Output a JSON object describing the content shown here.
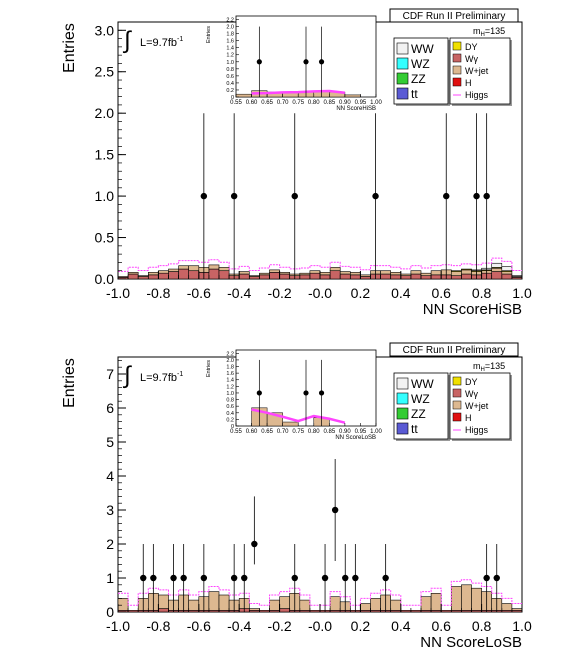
{
  "charts": [
    {
      "key": "hi",
      "header": "CDF Run II Preliminary",
      "mass_label": "m",
      "mass_sub": "H",
      "mass_value": "=135",
      "ylabel": "Entries",
      "xlabel": "NN ScoreHiSB",
      "lumi": "L=9.7fb",
      "lumi_sup": "-1",
      "legend_left": [
        "WW",
        "WZ",
        "ZZ",
        "tt"
      ],
      "legend_right": [
        "DY",
        "Wγ",
        "W+jet",
        "H",
        "Higgs"
      ],
      "inset": {
        "ylabel": "Entries",
        "xlabel": "NN ScoreHiSB"
      }
    },
    {
      "key": "lo",
      "header": "CDF Run II Preliminary",
      "mass_label": "m",
      "mass_sub": "H",
      "mass_value": "=135",
      "ylabel": "Entries",
      "xlabel": "NN ScoreLoSB",
      "lumi": "L=9.7fb",
      "lumi_sup": "-1",
      "legend_left": [
        "WW",
        "WZ",
        "ZZ",
        "tt"
      ],
      "legend_right": [
        "DY",
        "Wγ",
        "W+jet",
        "H",
        "Higgs"
      ],
      "inset": {
        "ylabel": "Entries",
        "xlabel": "NN ScoreLoSB"
      }
    }
  ],
  "colors": {
    "WW": "#f2f2f2",
    "WZ": "#33ffff",
    "ZZ": "#33cc33",
    "tt": "#5a5ad4",
    "DY": "#f0e000",
    "Wg": "#c86464",
    "Wjet": "#ddb890",
    "H": "#e01010",
    "Higgs": "#ff44ff"
  },
  "chart_data": [
    {
      "type": "bar",
      "title": "CDF Run II Preliminary",
      "xlabel": "NN ScoreHiSB",
      "ylabel": "Entries",
      "xlim": [
        -1.0,
        1.0
      ],
      "ylim": [
        0,
        3.1
      ],
      "xticks": [
        -1.0,
        -0.8,
        -0.6,
        -0.4,
        -0.2,
        -0.0,
        0.2,
        0.4,
        0.6,
        0.8,
        1.0
      ],
      "xtick_labels": [
        "-1.0",
        "-0.8",
        "-0.6",
        "-0.4",
        "-0.2",
        "-0.0",
        "0.2",
        "0.4",
        "0.6",
        "0.8",
        "1.0"
      ],
      "yticks": [
        0,
        0.5,
        1.0,
        1.5,
        2.0,
        2.5,
        3.0
      ],
      "ytick_labels": [
        "0.0",
        "0.5",
        "1.0",
        "1.5",
        "2.0",
        "2.5",
        "3.0"
      ],
      "bin_edges_range": [
        -1.0,
        1.0
      ],
      "n_bins": 40,
      "series": [
        {
          "name": "Wγ",
          "color_key": "Wg",
          "values": [
            0.02,
            0.06,
            0.03,
            0.05,
            0.07,
            0.09,
            0.12,
            0.1,
            0.08,
            0.12,
            0.1,
            0.04,
            0.06,
            0.03,
            0.05,
            0.08,
            0.06,
            0.04,
            0.05,
            0.07,
            0.05,
            0.1,
            0.06,
            0.05,
            0.03,
            0.06,
            0.06,
            0.05,
            0.04,
            0.06,
            0.04,
            0.05,
            0.05,
            0.04,
            0.06,
            0.05,
            0.07,
            0.09,
            0.06,
            0.02
          ]
        },
        {
          "name": "W+jet",
          "color_key": "Wjet",
          "values": [
            0.01,
            0.02,
            0.01,
            0.03,
            0.03,
            0.03,
            0.04,
            0.06,
            0.06,
            0.05,
            0.04,
            0.02,
            0.03,
            0.01,
            0.02,
            0.03,
            0.02,
            0.02,
            0.02,
            0.03,
            0.03,
            0.04,
            0.03,
            0.03,
            0.02,
            0.04,
            0.04,
            0.03,
            0.02,
            0.04,
            0.03,
            0.05,
            0.06,
            0.05,
            0.05,
            0.04,
            0.03,
            0.04,
            0.03,
            0.01
          ]
        },
        {
          "name": "DY",
          "color_key": "DY",
          "values": [
            0,
            0,
            0,
            0,
            0,
            0,
            0,
            0,
            0,
            0,
            0,
            0,
            0,
            0,
            0,
            0,
            0,
            0,
            0,
            0,
            0,
            0,
            0,
            0,
            0,
            0,
            0,
            0,
            0,
            0,
            0,
            0,
            0,
            0.01,
            0.01,
            0.01,
            0.01,
            0.01,
            0.01,
            0
          ]
        },
        {
          "name": "WW",
          "color_key": "WW",
          "values": [
            0,
            0,
            0,
            0,
            0,
            0,
            0,
            0,
            0,
            0,
            0,
            0,
            0,
            0,
            0,
            0,
            0,
            0,
            0,
            0,
            0,
            0,
            0,
            0,
            0,
            0,
            0,
            0,
            0,
            0,
            0,
            0,
            0,
            0,
            0,
            0.01,
            0.02,
            0.05,
            0.05,
            0.01
          ]
        }
      ],
      "data_points": [
        {
          "x": -0.575,
          "y": 1.0,
          "err": [
            0,
            2.0
          ]
        },
        {
          "x": -0.425,
          "y": 1.0,
          "err": [
            0,
            2.0
          ]
        },
        {
          "x": -0.125,
          "y": 1.0,
          "err": [
            0,
            2.0
          ]
        },
        {
          "x": 0.275,
          "y": 1.0,
          "err": [
            0,
            2.0
          ]
        },
        {
          "x": 0.625,
          "y": 1.0,
          "err": [
            0,
            2.0
          ]
        },
        {
          "x": 0.775,
          "y": 1.0,
          "err": [
            0,
            2.0
          ]
        },
        {
          "x": 0.825,
          "y": 1.0,
          "err": [
            0,
            2.0
          ]
        }
      ],
      "inset": {
        "type": "bar",
        "xlim": [
          0.55,
          1.0
        ],
        "ylim": [
          0,
          2.3
        ],
        "xticks": [
          0.55,
          0.6,
          0.65,
          0.7,
          0.75,
          0.8,
          0.85,
          0.9,
          0.95,
          1.0
        ],
        "xtick_labels": [
          "0.55",
          "0.60",
          "0.65",
          "0.70",
          "0.75",
          "0.80",
          "0.85",
          "0.90",
          "0.95",
          "1.00"
        ],
        "yticks": [
          0,
          0.2,
          0.4,
          0.6,
          0.8,
          1.0,
          1.2,
          1.4,
          1.6,
          1.8,
          2.0,
          2.2
        ],
        "ytick_labels": [
          "0",
          "0.2",
          "0.4",
          "0.6",
          "0.8",
          "1.0",
          "1.2",
          "1.4",
          "1.6",
          "1.8",
          "2.0",
          "2.2"
        ],
        "bin_edges": [
          0.55,
          0.6,
          0.65,
          0.7,
          0.75,
          0.8,
          0.85,
          0.9,
          0.95,
          1.0
        ],
        "stack": [
          0.08,
          0.18,
          0.14,
          0.14,
          0.16,
          0.16,
          0.14,
          0.06,
          0.0
        ],
        "higgs": [
          [
            0.6,
            0.1
          ],
          [
            0.65,
            0.11
          ],
          [
            0.7,
            0.13
          ],
          [
            0.75,
            0.14
          ],
          [
            0.8,
            0.16
          ],
          [
            0.85,
            0.17
          ],
          [
            0.9,
            0.12
          ]
        ],
        "data_points": [
          {
            "x": 0.625,
            "y": 1.0,
            "err": [
              0,
              2.0
            ]
          },
          {
            "x": 0.775,
            "y": 1.0,
            "err": [
              0,
              2.0
            ]
          },
          {
            "x": 0.825,
            "y": 1.0,
            "err": [
              0,
              2.0
            ]
          }
        ]
      }
    },
    {
      "type": "bar",
      "title": "CDF Run II Preliminary",
      "xlabel": "NN ScoreLoSB",
      "ylabel": "Entries",
      "xlim": [
        -1.0,
        1.0
      ],
      "ylim": [
        0,
        7.5
      ],
      "xticks": [
        -1.0,
        -0.8,
        -0.6,
        -0.4,
        -0.2,
        -0.0,
        0.2,
        0.4,
        0.6,
        0.8,
        1.0
      ],
      "xtick_labels": [
        "-1.0",
        "-0.8",
        "-0.6",
        "-0.4",
        "-0.2",
        "-0.0",
        "0.2",
        "0.4",
        "0.6",
        "0.8",
        "1.0"
      ],
      "yticks": [
        0,
        1,
        2,
        3,
        4,
        5,
        6,
        7
      ],
      "ytick_labels": [
        "0",
        "1",
        "2",
        "3",
        "4",
        "5",
        "6",
        "7"
      ],
      "bin_edges_range": [
        -1.0,
        1.0
      ],
      "n_bins": 40,
      "series": [
        {
          "name": "Wγ",
          "color_key": "Wg",
          "values": [
            0.05,
            0.05,
            0.05,
            0.05,
            0.1,
            0.05,
            0.05,
            0.05,
            0.05,
            0.05,
            0.05,
            0.05,
            0.1,
            0.05,
            0.05,
            0.05,
            0.1,
            0.05,
            0.05,
            0.05,
            0.05,
            0.05,
            0.05,
            0.05,
            0.05,
            0.05,
            0.05,
            0.05,
            0.05,
            0.05,
            0.05,
            0.05,
            0.05,
            0.05,
            0.05,
            0.05,
            0.05,
            0.05,
            0.05,
            0.05
          ]
        },
        {
          "name": "W+jet",
          "color_key": "Wjet",
          "values": [
            0.35,
            0.0,
            0.35,
            0.5,
            0.4,
            0.3,
            0.45,
            0.3,
            0.4,
            0.55,
            0.45,
            0.3,
            0.3,
            0.05,
            0.0,
            0.3,
            0.35,
            0.5,
            0.3,
            0.0,
            0.0,
            0.4,
            0.25,
            0.0,
            0.2,
            0.35,
            0.45,
            0.3,
            0.0,
            0.0,
            0.4,
            0.5,
            0.0,
            0.7,
            0.75,
            0.65,
            0.55,
            0.35,
            0.2,
            0.05
          ]
        }
      ],
      "data_points": [
        {
          "x": -0.875,
          "y": 1.0,
          "err": [
            0,
            2.0
          ]
        },
        {
          "x": -0.825,
          "y": 1.0,
          "err": [
            0,
            2.0
          ]
        },
        {
          "x": -0.725,
          "y": 1.0,
          "err": [
            0,
            2.0
          ]
        },
        {
          "x": -0.675,
          "y": 1.0,
          "err": [
            0,
            2.0
          ]
        },
        {
          "x": -0.575,
          "y": 1.0,
          "err": [
            0,
            2.0
          ]
        },
        {
          "x": -0.425,
          "y": 1.0,
          "err": [
            0,
            2.0
          ]
        },
        {
          "x": -0.375,
          "y": 1.0,
          "err": [
            0,
            2.0
          ]
        },
        {
          "x": -0.325,
          "y": 2.0,
          "err": [
            1.4,
            3.4
          ]
        },
        {
          "x": -0.125,
          "y": 1.0,
          "err": [
            0,
            2.0
          ]
        },
        {
          "x": 0.025,
          "y": 1.0,
          "err": [
            0,
            2.0
          ]
        },
        {
          "x": 0.075,
          "y": 3.0,
          "err": [
            1.5,
            4.5
          ]
        },
        {
          "x": 0.125,
          "y": 1.0,
          "err": [
            0,
            2.0
          ]
        },
        {
          "x": 0.175,
          "y": 1.0,
          "err": [
            0,
            2.0
          ]
        },
        {
          "x": 0.325,
          "y": 1.0,
          "err": [
            0,
            2.0
          ]
        },
        {
          "x": 0.825,
          "y": 1.0,
          "err": [
            0,
            2.0
          ]
        },
        {
          "x": 0.875,
          "y": 1.0,
          "err": [
            0,
            2.0
          ]
        }
      ],
      "inset": {
        "type": "bar",
        "xlim": [
          0.55,
          1.0
        ],
        "ylim": [
          0,
          2.3
        ],
        "xticks": [
          0.55,
          0.6,
          0.65,
          0.7,
          0.75,
          0.8,
          0.85,
          0.9,
          0.95,
          1.0
        ],
        "xtick_labels": [
          "0.55",
          "0.60",
          "0.65",
          "0.70",
          "0.75",
          "0.80",
          "0.85",
          "0.90",
          "0.95",
          "1.00"
        ],
        "yticks": [
          0,
          0.2,
          0.4,
          0.6,
          0.8,
          1.0,
          1.2,
          1.4,
          1.6,
          1.8,
          2.0,
          2.2
        ],
        "ytick_labels": [
          "0",
          "0.2",
          "0.4",
          "0.6",
          "0.8",
          "1.0",
          "1.2",
          "1.4",
          "1.6",
          "1.8",
          "2.0",
          "2.2"
        ],
        "bin_edges": [
          0.55,
          0.6,
          0.65,
          0.7,
          0.75,
          0.8,
          0.85,
          0.9,
          0.95,
          1.0
        ],
        "stack": [
          0.0,
          0.55,
          0.4,
          0.12,
          0.0,
          0.25,
          0.0,
          0.0,
          0.0
        ],
        "higgs": [
          [
            0.6,
            0.5
          ],
          [
            0.65,
            0.4
          ],
          [
            0.7,
            0.28
          ],
          [
            0.75,
            0.15
          ],
          [
            0.8,
            0.3
          ],
          [
            0.85,
            0.22
          ],
          [
            0.9,
            0.1
          ]
        ],
        "data_points": [
          {
            "x": 0.625,
            "y": 1.0,
            "err": [
              0,
              2.0
            ]
          },
          {
            "x": 0.775,
            "y": 1.0,
            "err": [
              0,
              2.0
            ]
          },
          {
            "x": 0.825,
            "y": 1.0,
            "err": [
              0,
              2.0
            ]
          }
        ]
      }
    }
  ]
}
